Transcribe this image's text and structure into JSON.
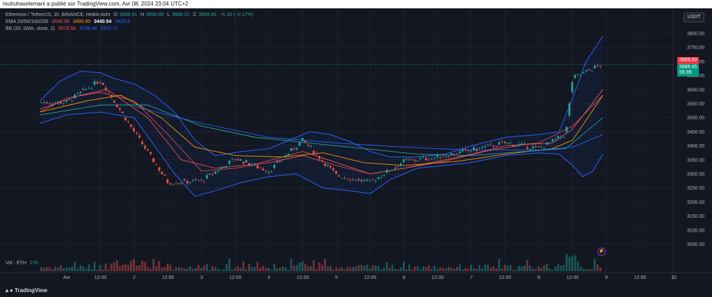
{
  "header": {
    "published": "muhuhaselemani a publié sur TradingView.com, Avr 08, 2024 23:04 UTC+2"
  },
  "legend": {
    "symbol": "Ethereum / TetherUS, 1h, BINANCE, Heikin Ashi",
    "o_label": "O",
    "o": "3688.51",
    "h_label": "H",
    "h": "3690.00",
    "l_label": "L",
    "l": "3688.21",
    "c_label": "C",
    "c": "3689.45",
    "chg": "−6.16 (−0.17%)",
    "ema_label": "EMA 20/50/100/200",
    "ema20": "3598.05",
    "ema50": "3499.99",
    "ema100": "3440.54",
    "ema200": "3425.9",
    "bb_label": "BB (20, SMA, close, 2)",
    "bb_basis": "3579.58",
    "bb_upper": "3788.46",
    "bb_lower": "3370.71",
    "vol_label": "Vol · ETH",
    "vol": "270"
  },
  "price_axis": {
    "currency": "USDT",
    "ticks": [
      "3800.00",
      "3750.00",
      "3700.00",
      "3650.00",
      "3600.00",
      "3550.00",
      "3500.00",
      "3450.00",
      "3400.00",
      "3350.00",
      "3300.00",
      "3250.00",
      "3200.00",
      "3150.00",
      "3100.00",
      "3050.00"
    ],
    "last_price": "3689.60",
    "last_close": "3689.45",
    "countdown": "55:39"
  },
  "time_axis": {
    "ticks": [
      "Avr",
      "12:00",
      "2",
      "12:00",
      "3",
      "12:00",
      "4",
      "12:00",
      "5",
      "12:00",
      "6",
      "12:00",
      "7",
      "12:00",
      "8",
      "12:00",
      "9",
      "12:00",
      "10"
    ]
  },
  "footer": {
    "brand": "TradingView"
  },
  "colors": {
    "up": "#26a69a",
    "down": "#ef5350",
    "ema20": "#ef5350",
    "ema50": "#ff9800",
    "ema100": "#26a69a",
    "ema200": "#2962ff",
    "bb": "#2962ff",
    "bg": "#131722",
    "price_line": "#26a69a",
    "last_badge": "#f23645",
    "close_badge": "#089981"
  },
  "chart_data": {
    "type": "candlestick",
    "title": "Ethereum / TetherUS, 1h, BINANCE, Heikin Ashi",
    "xlabel": "",
    "ylabel": "",
    "ylim": [
      3030,
      3840
    ],
    "x_range_days": [
      0.6,
      10
    ],
    "ohlc_day_close": [
      {
        "day": 1.0,
        "close": 3555
      },
      {
        "day": 1.5,
        "close": 3635
      },
      {
        "day": 2.0,
        "close": 3450
      },
      {
        "day": 2.5,
        "close": 3270
      },
      {
        "day": 3.0,
        "close": 3275
      },
      {
        "day": 3.5,
        "close": 3355
      },
      {
        "day": 4.0,
        "close": 3310
      },
      {
        "day": 4.5,
        "close": 3420
      },
      {
        "day": 5.0,
        "close": 3295
      },
      {
        "day": 5.5,
        "close": 3270
      },
      {
        "day": 6.0,
        "close": 3345
      },
      {
        "day": 6.5,
        "close": 3360
      },
      {
        "day": 7.0,
        "close": 3385
      },
      {
        "day": 7.5,
        "close": 3410
      },
      {
        "day": 8.0,
        "close": 3390
      },
      {
        "day": 8.4,
        "close": 3440
      },
      {
        "day": 8.5,
        "close": 3640
      },
      {
        "day": 8.92,
        "close": 3689
      }
    ],
    "ema": [
      {
        "name": "EMA 20",
        "points": [
          [
            0.6,
            3530
          ],
          [
            1.2,
            3580
          ],
          [
            1.6,
            3600
          ],
          [
            2.2,
            3500
          ],
          [
            2.7,
            3350
          ],
          [
            3.2,
            3320
          ],
          [
            3.8,
            3335
          ],
          [
            4.5,
            3380
          ],
          [
            5.0,
            3340
          ],
          [
            5.5,
            3300
          ],
          [
            6.0,
            3320
          ],
          [
            6.6,
            3345
          ],
          [
            7.2,
            3380
          ],
          [
            7.8,
            3405
          ],
          [
            8.2,
            3410
          ],
          [
            8.5,
            3460
          ],
          [
            8.95,
            3600
          ]
        ]
      },
      {
        "name": "EMA 50",
        "points": [
          [
            0.6,
            3520
          ],
          [
            1.3,
            3560
          ],
          [
            1.8,
            3580
          ],
          [
            2.4,
            3500
          ],
          [
            2.9,
            3395
          ],
          [
            3.5,
            3365
          ],
          [
            4.2,
            3360
          ],
          [
            4.8,
            3375
          ],
          [
            5.4,
            3340
          ],
          [
            6.0,
            3330
          ],
          [
            6.8,
            3345
          ],
          [
            7.5,
            3370
          ],
          [
            8.2,
            3390
          ],
          [
            8.5,
            3420
          ],
          [
            8.95,
            3580
          ]
        ]
      },
      {
        "name": "EMA 100",
        "points": [
          [
            0.6,
            3510
          ],
          [
            1.5,
            3545
          ],
          [
            2.2,
            3545
          ],
          [
            3.0,
            3470
          ],
          [
            3.8,
            3430
          ],
          [
            4.6,
            3410
          ],
          [
            5.4,
            3390
          ],
          [
            6.2,
            3370
          ],
          [
            7.0,
            3365
          ],
          [
            7.8,
            3380
          ],
          [
            8.4,
            3390
          ],
          [
            8.95,
            3500
          ]
        ]
      },
      {
        "name": "EMA 200",
        "points": [
          [
            2.0,
            3540
          ],
          [
            3.0,
            3480
          ],
          [
            4.0,
            3430
          ],
          [
            5.0,
            3410
          ],
          [
            6.0,
            3395
          ],
          [
            7.0,
            3385
          ],
          [
            8.0,
            3385
          ],
          [
            8.5,
            3395
          ],
          [
            8.95,
            3440
          ]
        ]
      }
    ],
    "bollinger": {
      "upper": [
        [
          0.6,
          3560
        ],
        [
          0.9,
          3630
        ],
        [
          1.2,
          3665
        ],
        [
          1.5,
          3660
        ],
        [
          1.7,
          3640
        ],
        [
          2.0,
          3620
        ],
        [
          2.3,
          3580
        ],
        [
          2.6,
          3520
        ],
        [
          2.9,
          3420
        ],
        [
          3.2,
          3365
        ],
        [
          3.6,
          3380
        ],
        [
          4.0,
          3390
        ],
        [
          4.4,
          3430
        ],
        [
          4.6,
          3450
        ],
        [
          4.9,
          3440
        ],
        [
          5.2,
          3415
        ],
        [
          5.5,
          3380
        ],
        [
          5.8,
          3360
        ],
        [
          6.2,
          3360
        ],
        [
          6.6,
          3370
        ],
        [
          7.0,
          3400
        ],
        [
          7.5,
          3430
        ],
        [
          8.0,
          3440
        ],
        [
          8.3,
          3450
        ],
        [
          8.5,
          3570
        ],
        [
          8.7,
          3700
        ],
        [
          8.95,
          3790
        ]
      ],
      "basis": [
        [
          0.6,
          3520
        ],
        [
          1.0,
          3570
        ],
        [
          1.5,
          3590
        ],
        [
          2.0,
          3560
        ],
        [
          2.5,
          3440
        ],
        [
          3.0,
          3310
        ],
        [
          3.5,
          3320
        ],
        [
          4.0,
          3340
        ],
        [
          4.5,
          3365
        ],
        [
          5.0,
          3330
        ],
        [
          5.5,
          3300
        ],
        [
          6.0,
          3320
        ],
        [
          6.5,
          3345
        ],
        [
          7.0,
          3370
        ],
        [
          7.5,
          3400
        ],
        [
          8.0,
          3410
        ],
        [
          8.5,
          3470
        ],
        [
          8.95,
          3580
        ]
      ],
      "lower": [
        [
          0.6,
          3480
        ],
        [
          1.0,
          3510
        ],
        [
          1.5,
          3520
        ],
        [
          2.0,
          3500
        ],
        [
          2.3,
          3400
        ],
        [
          2.6,
          3300
        ],
        [
          2.9,
          3220
        ],
        [
          3.2,
          3240
        ],
        [
          3.6,
          3270
        ],
        [
          4.0,
          3290
        ],
        [
          4.4,
          3300
        ],
        [
          4.8,
          3250
        ],
        [
          5.2,
          3240
        ],
        [
          5.5,
          3230
        ],
        [
          5.8,
          3280
        ],
        [
          6.2,
          3320
        ],
        [
          6.6,
          3330
        ],
        [
          7.0,
          3340
        ],
        [
          7.5,
          3365
        ],
        [
          8.0,
          3375
        ],
        [
          8.3,
          3370
        ],
        [
          8.5,
          3330
        ],
        [
          8.65,
          3290
        ],
        [
          8.8,
          3310
        ],
        [
          8.95,
          3370
        ]
      ]
    },
    "volume": {
      "name": "Vol · ETH",
      "last": 270
    }
  }
}
